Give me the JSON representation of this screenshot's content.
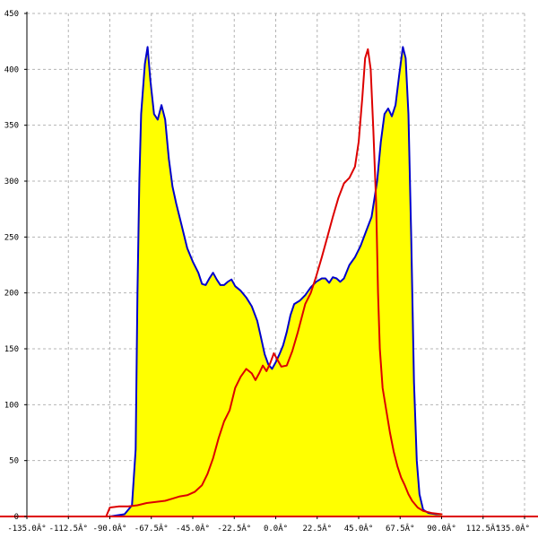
{
  "chart_data": {
    "type": "area",
    "xlim": [
      -135,
      135
    ],
    "ylim": [
      0,
      450
    ],
    "x_ticks": [
      -135,
      -112.5,
      -90,
      -67.5,
      -45,
      -22.5,
      0,
      22.5,
      45,
      67.5,
      90,
      112.5,
      135
    ],
    "x_tick_labels": [
      "-135.0Â°",
      "-112.5Â°",
      "-90.0Â°",
      "-67.5Â°",
      "-45.0Â°",
      "-22.5Â°",
      "0.0Â°",
      "22.5Â°",
      "45.0Â°",
      "67.5Â°",
      "90.0Â°",
      "112.5Â°",
      "135.0Â°"
    ],
    "y_ticks": [
      0,
      50,
      100,
      150,
      200,
      250,
      300,
      350,
      400,
      450
    ],
    "y_tick_labels": [
      "0",
      "50",
      "100",
      "150",
      "200",
      "250",
      "300",
      "350",
      "400",
      "450"
    ],
    "grid": true,
    "colors": {
      "fill": "#ffff00",
      "series_1": "#0000cc",
      "series_2": "#dd0000",
      "grid": "#b4b4b4",
      "axis": "#000000"
    },
    "series": [
      {
        "style": "filled-area",
        "points": [
          [
            -90,
            0
          ],
          [
            -82,
            2
          ],
          [
            -78,
            10
          ],
          [
            -76,
            60
          ],
          [
            -75,
            200
          ],
          [
            -74,
            300
          ],
          [
            -73,
            360
          ],
          [
            -71,
            405
          ],
          [
            -69.5,
            420
          ],
          [
            -68,
            390
          ],
          [
            -66,
            360
          ],
          [
            -64,
            355
          ],
          [
            -62,
            368
          ],
          [
            -60,
            355
          ],
          [
            -58,
            320
          ],
          [
            -56,
            295
          ],
          [
            -54,
            280
          ],
          [
            -51,
            260
          ],
          [
            -48,
            240
          ],
          [
            -45,
            228
          ],
          [
            -42,
            218
          ],
          [
            -40,
            208
          ],
          [
            -38,
            207
          ],
          [
            -36,
            213
          ],
          [
            -34,
            218
          ],
          [
            -32,
            212
          ],
          [
            -30,
            207
          ],
          [
            -28,
            207
          ],
          [
            -26,
            210
          ],
          [
            -24,
            212
          ],
          [
            -22,
            206
          ],
          [
            -19,
            202
          ],
          [
            -16,
            196
          ],
          [
            -13,
            188
          ],
          [
            -10,
            175
          ],
          [
            -8,
            160
          ],
          [
            -6,
            145
          ],
          [
            -4,
            136
          ],
          [
            -2,
            132
          ],
          [
            0,
            138
          ],
          [
            2,
            145
          ],
          [
            4,
            153
          ],
          [
            6,
            165
          ],
          [
            8,
            180
          ],
          [
            10,
            190
          ],
          [
            13,
            193
          ],
          [
            16,
            198
          ],
          [
            19,
            205
          ],
          [
            22,
            210
          ],
          [
            25,
            213
          ],
          [
            27,
            213
          ],
          [
            29,
            209
          ],
          [
            31,
            214
          ],
          [
            33,
            213
          ],
          [
            35,
            210
          ],
          [
            37,
            213
          ],
          [
            40,
            225
          ],
          [
            43,
            232
          ],
          [
            46,
            242
          ],
          [
            49,
            255
          ],
          [
            52,
            268
          ],
          [
            55,
            300
          ],
          [
            57,
            335
          ],
          [
            59,
            360
          ],
          [
            61,
            365
          ],
          [
            63,
            358
          ],
          [
            65,
            368
          ],
          [
            67,
            395
          ],
          [
            69,
            420
          ],
          [
            70.5,
            410
          ],
          [
            72,
            360
          ],
          [
            73.5,
            250
          ],
          [
            75,
            120
          ],
          [
            76.5,
            50
          ],
          [
            78,
            20
          ],
          [
            80,
            6
          ],
          [
            83,
            3
          ],
          [
            87,
            2
          ],
          [
            90,
            2
          ]
        ]
      },
      {
        "style": "line",
        "points": [
          [
            -92,
            0
          ],
          [
            -90,
            8
          ],
          [
            -85,
            9
          ],
          [
            -80,
            9
          ],
          [
            -75,
            10
          ],
          [
            -70,
            12
          ],
          [
            -65,
            13
          ],
          [
            -60,
            14
          ],
          [
            -56,
            16
          ],
          [
            -52,
            18
          ],
          [
            -48,
            19
          ],
          [
            -44,
            22
          ],
          [
            -40,
            28
          ],
          [
            -37,
            38
          ],
          [
            -34,
            52
          ],
          [
            -31,
            70
          ],
          [
            -28,
            85
          ],
          [
            -25,
            95
          ],
          [
            -22,
            115
          ],
          [
            -19,
            125
          ],
          [
            -16,
            132
          ],
          [
            -13,
            128
          ],
          [
            -11,
            122
          ],
          [
            -9,
            128
          ],
          [
            -7,
            135
          ],
          [
            -5,
            130
          ],
          [
            -3,
            137
          ],
          [
            -1,
            146
          ],
          [
            1,
            140
          ],
          [
            3,
            134
          ],
          [
            6,
            135
          ],
          [
            9,
            148
          ],
          [
            12,
            165
          ],
          [
            16,
            190
          ],
          [
            19,
            200
          ],
          [
            22,
            215
          ],
          [
            25,
            232
          ],
          [
            28,
            250
          ],
          [
            31,
            268
          ],
          [
            34,
            285
          ],
          [
            37,
            298
          ],
          [
            40,
            303
          ],
          [
            43,
            313
          ],
          [
            45,
            335
          ],
          [
            47,
            375
          ],
          [
            48.5,
            410
          ],
          [
            50,
            418
          ],
          [
            51.5,
            400
          ],
          [
            53,
            345
          ],
          [
            54.5,
            280
          ],
          [
            55.5,
            200
          ],
          [
            56.5,
            150
          ],
          [
            58,
            115
          ],
          [
            60,
            95
          ],
          [
            62,
            75
          ],
          [
            64,
            58
          ],
          [
            66,
            45
          ],
          [
            68,
            35
          ],
          [
            70,
            28
          ],
          [
            72,
            20
          ],
          [
            74,
            14
          ],
          [
            77,
            8
          ],
          [
            80,
            5
          ],
          [
            85,
            3
          ],
          [
            90,
            2
          ]
        ]
      }
    ]
  }
}
